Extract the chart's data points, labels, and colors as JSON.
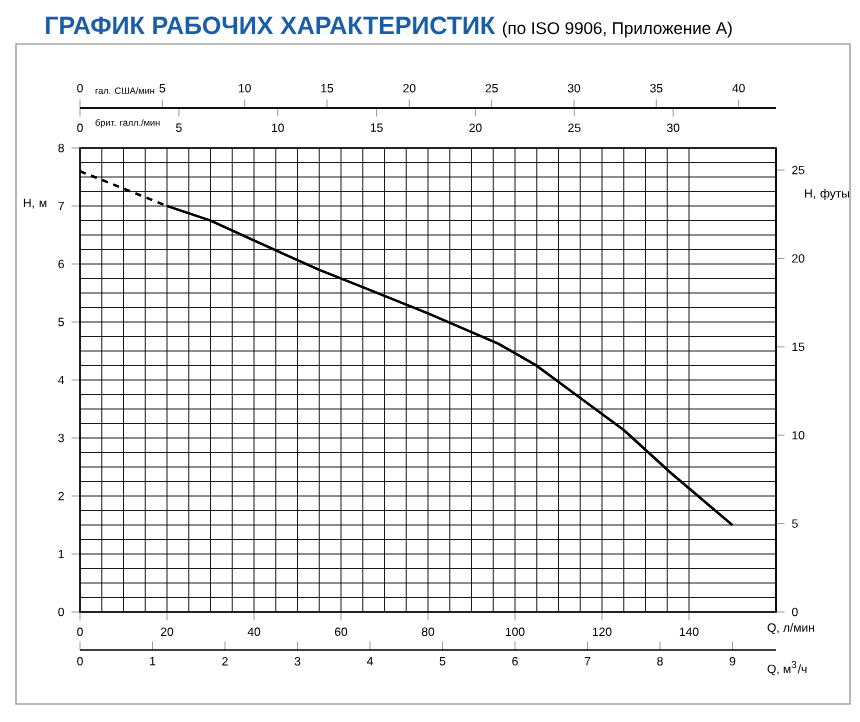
{
  "chart_data": [
    {
      "type": "line",
      "title": "ГРАФИК РАБОЧИХ ХАРАКТЕРИСТИК",
      "subtitle": "(по ISO 9906, Приложение А)",
      "xlabel": "Q, л/мин",
      "ylabel": "H, м",
      "y2label": "H, футы",
      "x2label": "Q, м$^{3}$/ч",
      "xlim": [
        0,
        160
      ],
      "xticks": [
        0,
        20,
        40,
        60,
        80,
        100,
        120,
        140
      ],
      "x2lim": [
        0,
        9.6
      ],
      "x2ticks": [
        0,
        1,
        2,
        3,
        4,
        5,
        6,
        7,
        8,
        9
      ],
      "ylim": [
        0,
        8
      ],
      "yticks": [
        0,
        1,
        2,
        3,
        4,
        5,
        6,
        7,
        8
      ],
      "y2lim": [
        0,
        26.25
      ],
      "y2ticks": [
        0,
        5,
        10,
        15,
        20,
        25
      ],
      "grid": true,
      "series": [
        {
          "color": "#000000",
          "line_style": "dashed",
          "x": [
            0,
            20
          ],
          "values": [
            7.6,
            7.0
          ]
        },
        {
          "color": "#000000",
          "line_style": "solid",
          "x": [
            20,
            30,
            43,
            55,
            65,
            80,
            96,
            105,
            113.6,
            125,
            136,
            150
          ],
          "values": [
            7.0,
            6.75,
            6.3,
            5.9,
            5.6,
            5.15,
            4.63,
            4.25,
            3.77,
            3.14,
            2.39,
            1.5
          ]
        }
      ]
    },
    {
      "type": "line",
      "xlabel": "гал. США/мин",
      "x2label": "брит. галл./мин",
      "xlim": [
        0,
        42.27
      ],
      "xticks": [
        0,
        5,
        10,
        15,
        20,
        25,
        30,
        35,
        40
      ],
      "x2lim": [
        0,
        35.2
      ],
      "x2ticks": [
        0,
        5,
        10,
        15,
        20,
        25,
        30
      ],
      "ylim": [
        0,
        8
      ],
      "tick_labels": "x",
      "series": [
        {
          "color": "#000000",
          "line_style": "dashed",
          "x": [
            0,
            5.3
          ],
          "values": [
            7.6,
            7.0
          ]
        },
        {
          "color": "#000000",
          "line_style": "solid",
          "x": [
            5.3,
            7.9,
            11.4,
            14.5,
            17.2,
            21.1,
            25.4,
            27.7,
            30.0,
            33.0,
            35.9,
            39.6
          ],
          "values": [
            7.0,
            6.75,
            6.3,
            5.9,
            5.6,
            5.15,
            4.63,
            4.25,
            3.77,
            3.14,
            2.39,
            1.5
          ]
        }
      ]
    }
  ]
}
